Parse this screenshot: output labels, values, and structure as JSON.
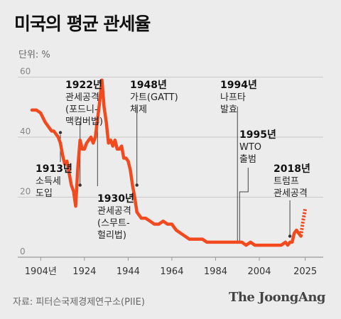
{
  "title": "미국의 평균 관세율",
  "unit": "단위: %",
  "source": "자료: 피터슨국제경제연구소(PIIE)",
  "brand": "The JoongAng",
  "colors": {
    "line": "#f24a1e",
    "grid": "#c9c9c9",
    "annotation_line": "#444444"
  },
  "chart_data": {
    "type": "line",
    "title": "미국의 평균 관세율",
    "ylabel": "단위: %",
    "ylim": [
      0,
      62
    ],
    "xlim": [
      1900,
      2030
    ],
    "yticks": [
      0,
      20,
      40,
      60
    ],
    "xtick_labels": [
      "1904년",
      "1924",
      "1944",
      "1964",
      "1984",
      "2004",
      "2025"
    ],
    "xtick_values": [
      1904,
      1924,
      1944,
      1964,
      1984,
      2004,
      2025
    ],
    "grid": true,
    "series": [
      {
        "style": "solid",
        "x": [
          1900,
          1902,
          1904,
          1906,
          1908,
          1909,
          1910,
          1911,
          1912,
          1913,
          1914,
          1915,
          1916,
          1917,
          1918,
          1919,
          1920,
          1921,
          1922,
          1923,
          1924,
          1925,
          1926,
          1927,
          1928,
          1929,
          1930,
          1931,
          1932,
          1933,
          1934,
          1935,
          1936,
          1937,
          1938,
          1939,
          1940,
          1941,
          1942,
          1943,
          1944,
          1945,
          1946,
          1947,
          1948,
          1949,
          1950,
          1952,
          1954,
          1956,
          1958,
          1960,
          1962,
          1964,
          1966,
          1968,
          1970,
          1972,
          1974,
          1976,
          1978,
          1980,
          1982,
          1984,
          1986,
          1988,
          1990,
          1992,
          1994,
          1996,
          1998,
          2000,
          2002,
          2004,
          2006,
          2008,
          2010,
          2012,
          2014,
          2016,
          2017,
          2018,
          2019,
          2020,
          2021,
          2022,
          2023
        ],
        "y": [
          49,
          49,
          48,
          45,
          43,
          42,
          42,
          41,
          40,
          38,
          34,
          31,
          32,
          28,
          24,
          22,
          17,
          30,
          39,
          36,
          36,
          38,
          39,
          40,
          38,
          40,
          46,
          52,
          59,
          50,
          45,
          38,
          39,
          37,
          39,
          36,
          36,
          37,
          33,
          33,
          32,
          29,
          24,
          20,
          15,
          14,
          13,
          13,
          12,
          11,
          11,
          12,
          11,
          11,
          9,
          8,
          7,
          6,
          6,
          6,
          6,
          5,
          5,
          5,
          5,
          5,
          5,
          5,
          5,
          5,
          4,
          5,
          4,
          4,
          4,
          4,
          4,
          4,
          4,
          5,
          4,
          5,
          5,
          8,
          9,
          8,
          7
        ]
      },
      {
        "style": "dashed",
        "x": [
          2023,
          2024,
          2025
        ],
        "y": [
          7,
          12,
          16
        ]
      }
    ],
    "annotations": [
      {
        "year_label": "1913년",
        "lines": [
          "소득세",
          "도입"
        ],
        "x": 1913,
        "y": 41.5
      },
      {
        "year_label": "1922년",
        "lines": [
          "관세공격",
          "(포드니-",
          "맥컴버법)"
        ],
        "x": 1922,
        "y": 24
      },
      {
        "year_label": "1930년",
        "lines": [
          "관세공격",
          "(스무트-",
          "헐리법)"
        ],
        "x": 1930,
        "y": 45
      },
      {
        "year_label": "1948년",
        "lines": [
          "가트(GATT)",
          "체제"
        ],
        "x": 1948,
        "y": 24
      },
      {
        "year_label": "1994년",
        "lines": [
          "나프타",
          "발효"
        ],
        "x": 1994,
        "y": 5
      },
      {
        "year_label": "1995년",
        "lines": [
          "WTO",
          "출범"
        ],
        "x": 1995,
        "y": 5
      },
      {
        "year_label": "2018년",
        "lines": [
          "트럼프",
          "관세공격"
        ],
        "x": 2018,
        "y": 7
      }
    ]
  }
}
